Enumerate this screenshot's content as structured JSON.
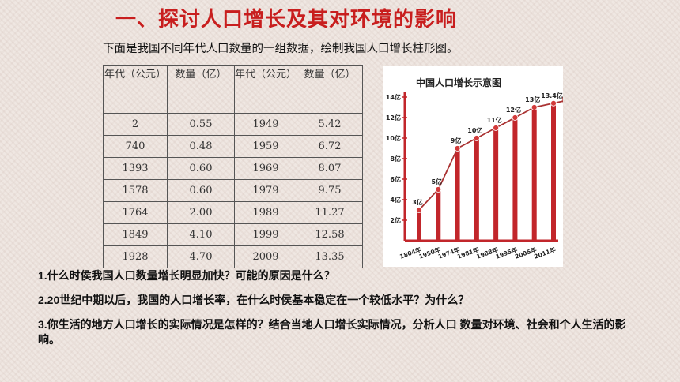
{
  "title": "一、探讨人口增长及其对环境的影响",
  "subtitle": "下面是我国不同年代人口数量的一组数据，绘制我国人口增长柱形图。",
  "table": {
    "headers": [
      "年代（公元）",
      "数量（亿）",
      "年代（公元）",
      "数量（亿）"
    ],
    "rows": [
      [
        "2",
        "0.55",
        "1949",
        "5.42"
      ],
      [
        "740",
        "0.48",
        "1959",
        "6.72"
      ],
      [
        "1393",
        "0.60",
        "1969",
        "8.07"
      ],
      [
        "1578",
        "0.60",
        "1979",
        "9.75"
      ],
      [
        "1764",
        "2.00",
        "1989",
        "11.27"
      ],
      [
        "1849",
        "4.10",
        "1999",
        "12.58"
      ],
      [
        "1928",
        "4.70",
        "2009",
        "13.35"
      ]
    ]
  },
  "chart_data": {
    "type": "line",
    "title": "中国人口增长示意图",
    "categories": [
      "1804年",
      "1950年",
      "1974年",
      "1981年",
      "1988年",
      "1995年",
      "2005年",
      "2011年"
    ],
    "values": [
      3,
      5,
      9,
      10,
      11,
      12,
      13,
      13.4
    ],
    "point_labels": [
      "3亿",
      "5亿",
      "9亿",
      "10亿",
      "11亿",
      "12亿",
      "13亿",
      "13.4亿"
    ],
    "y_ticks": [
      "2亿",
      "4亿",
      "6亿",
      "8亿",
      "10亿",
      "12亿",
      "14亿"
    ],
    "ylim": [
      0,
      14
    ],
    "bars": true,
    "colors": {
      "line": "#a33",
      "bar": "#c2262b",
      "point": "#d23a3a",
      "axis": "#c2262b"
    }
  },
  "questions": [
    "1.什么时侯我国人口数量增长明显加快？可能的原因是什么？",
    "2.20世纪中期以后，我国的人口增长率，在什么时侯基本稳定在一个较低水平？为什么？",
    "3.你生活的地方人口增长的实际情况是怎样的？结合当地人口增长实际情况，分析人口 数量对环境、社会和个人生活的影响。"
  ]
}
